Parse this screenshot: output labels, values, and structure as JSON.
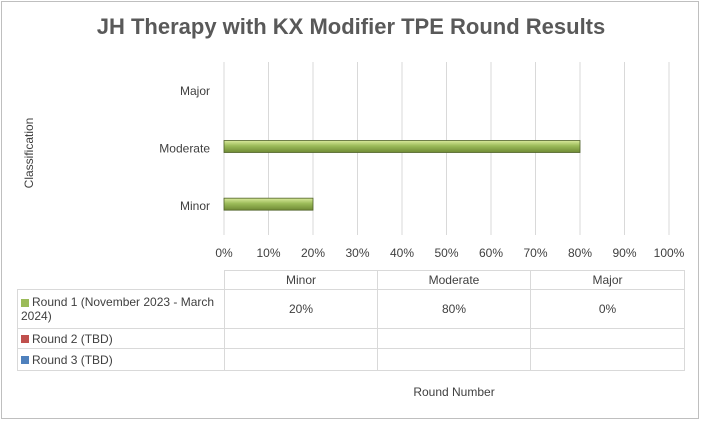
{
  "chart_data": {
    "type": "bar",
    "orientation": "horizontal",
    "title": "JH Therapy with KX Modifier TPE Round Results",
    "xlabel": "Round Number",
    "ylabel": "Classification",
    "categories": [
      "Minor",
      "Moderate",
      "Major"
    ],
    "xlim": [
      0,
      100
    ],
    "ticks": [
      "0%",
      "10%",
      "20%",
      "30%",
      "40%",
      "50%",
      "60%",
      "70%",
      "80%",
      "90%",
      "100%"
    ],
    "grid": true,
    "series": [
      {
        "name": "Round 1 (November 2023 - March 2024)",
        "values": [
          20,
          80,
          0
        ],
        "labels": [
          "20%",
          "80%",
          "0%"
        ],
        "color": "#9bbb59"
      },
      {
        "name": "Round 2 (TBD)",
        "values": [
          null,
          null,
          null
        ],
        "labels": [
          "",
          "",
          ""
        ],
        "color": "#c0504d"
      },
      {
        "name": "Round 3 (TBD)",
        "values": [
          null,
          null,
          null
        ],
        "labels": [
          "",
          "",
          ""
        ],
        "color": "#4f81bd"
      }
    ]
  }
}
